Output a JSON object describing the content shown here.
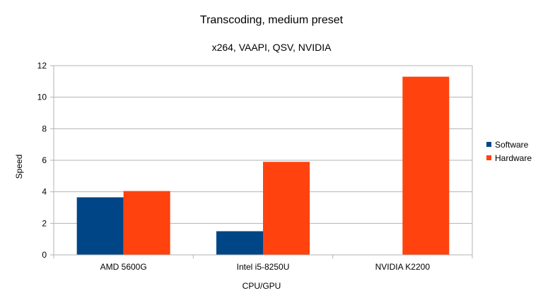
{
  "chart_data": {
    "type": "bar",
    "title": "Transcoding, medium preset",
    "subtitle": "x264, VAAPI, QSV, NVIDIA",
    "xlabel": "CPU/GPU",
    "ylabel": "Speed",
    "ylim": [
      0,
      12
    ],
    "yticks": [
      0,
      2,
      4,
      6,
      8,
      10,
      12
    ],
    "grid": true,
    "legend_position": "right",
    "categories": [
      "AMD 5600G",
      "Intel i5-8250U",
      "NVIDIA K2200"
    ],
    "series": [
      {
        "name": "Software",
        "color": "#004586",
        "values": [
          3.65,
          1.5,
          0
        ]
      },
      {
        "name": "Hardware",
        "color": "#ff420e",
        "values": [
          4.05,
          5.9,
          11.3
        ]
      }
    ]
  }
}
